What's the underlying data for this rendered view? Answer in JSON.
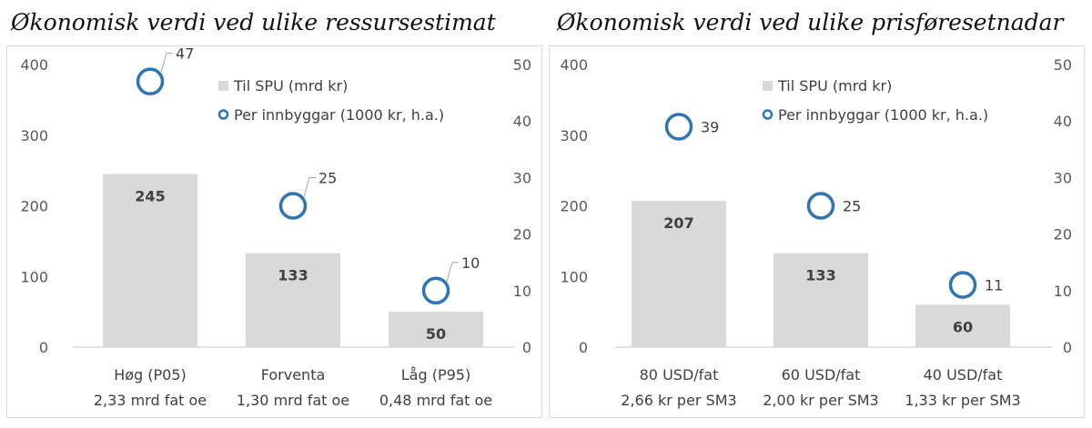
{
  "chart_data": [
    {
      "type": "bar",
      "title": "Økonomisk verdi ved ulike ressursestimat",
      "categories": [
        [
          "Høg (P05)",
          "2,33 mrd fat oe"
        ],
        [
          "Forventa",
          "1,30 mrd fat oe"
        ],
        [
          "Låg (P95)",
          "0,48 mrd fat oe"
        ]
      ],
      "ylim": [
        0,
        400
      ],
      "y_ticks": [
        0,
        100,
        200,
        300,
        400
      ],
      "y2lim": [
        0,
        50
      ],
      "y2_ticks": [
        0,
        10,
        20,
        30,
        40,
        50
      ],
      "series": [
        {
          "name": "Til SPU (mrd kr)",
          "kind": "bar",
          "axis": "left",
          "values": [
            245,
            133,
            50
          ],
          "labels": [
            "245",
            "133",
            "50"
          ]
        },
        {
          "name": "Per innbyggar (1000 kr, h.a.)",
          "kind": "marker",
          "axis": "right",
          "values": [
            47,
            25,
            10
          ],
          "labels": [
            "47",
            "25",
            "10"
          ]
        }
      ],
      "legend": "top-right",
      "grid": false,
      "colors": {
        "bar": "#d9d9d9",
        "marker": "#2e75b6"
      }
    },
    {
      "type": "bar",
      "title": "Økonomisk verdi ved ulike prisføresetnadar",
      "categories": [
        [
          "80 USD/fat",
          "2,66 kr per SM3"
        ],
        [
          "60 USD/fat",
          "2,00 kr per SM3"
        ],
        [
          "40 USD/fat",
          "1,33 kr per SM3"
        ]
      ],
      "ylim": [
        0,
        400
      ],
      "y_ticks": [
        0,
        100,
        200,
        300,
        400
      ],
      "y2lim": [
        0,
        50
      ],
      "y2_ticks": [
        0,
        10,
        20,
        30,
        40,
        50
      ],
      "series": [
        {
          "name": "Til SPU (mrd kr)",
          "kind": "bar",
          "axis": "left",
          "values": [
            207,
            133,
            60
          ],
          "labels": [
            "207",
            "133",
            "60"
          ]
        },
        {
          "name": "Per innbyggar (1000 kr, h.a.)",
          "kind": "marker",
          "axis": "right",
          "values": [
            39,
            25,
            11
          ],
          "labels": [
            "39",
            "25",
            "11"
          ]
        }
      ],
      "legend": "top-right",
      "grid": false,
      "colors": {
        "bar": "#d9d9d9",
        "marker": "#2e75b6"
      }
    }
  ]
}
